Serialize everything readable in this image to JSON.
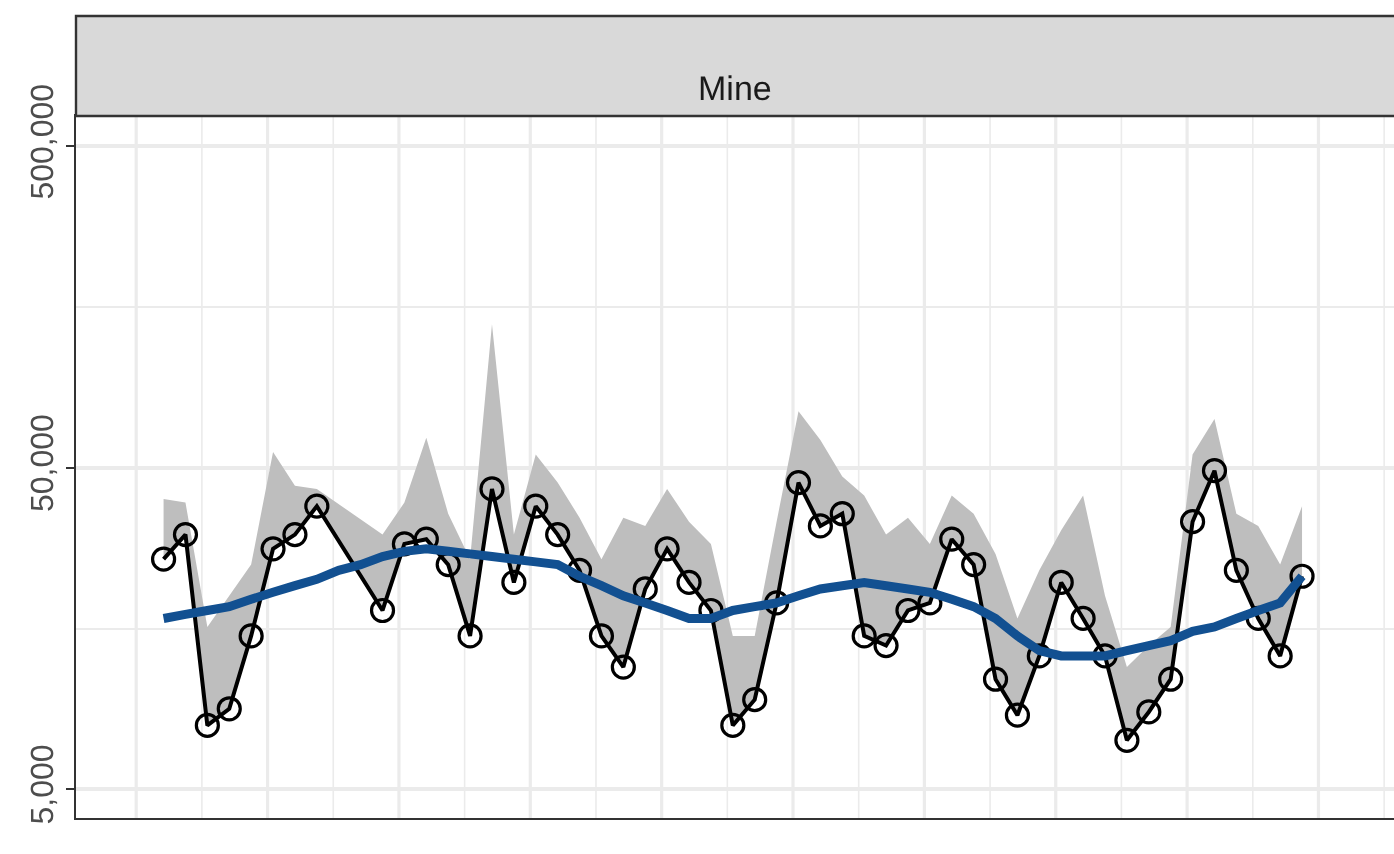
{
  "chart_data": {
    "type": "line",
    "title": "Mine",
    "log": "y",
    "grid": true,
    "categories": [
      null,
      null,
      null,
      null,
      null,
      null,
      null,
      null,
      null,
      null,
      null,
      null,
      null,
      null,
      null,
      null,
      null,
      null,
      null,
      null,
      null,
      null,
      null,
      null,
      null,
      null,
      null,
      null,
      null,
      null,
      null,
      null,
      null,
      null,
      null,
      null,
      null,
      null,
      null,
      null,
      null,
      null,
      null,
      null,
      null,
      null,
      null,
      null,
      null,
      null,
      null,
      null,
      null
    ],
    "ylim": [
      4070,
      622000
    ],
    "yticks": [
      {
        "value": 5000,
        "label": "5,000"
      },
      {
        "value": 15800,
        "label": null
      },
      {
        "value": 50000,
        "label": "50,000"
      },
      {
        "value": 158000,
        "label": null
      },
      {
        "value": 500000,
        "label": "500,000"
      }
    ],
    "series": [
      {
        "color": "#000000",
        "marker": "circle",
        "line_style": "solid",
        "values": [
          26000,
          31000,
          7900,
          8900,
          15000,
          28000,
          31000,
          38000,
          null,
          null,
          18000,
          29000,
          30000,
          25000,
          15000,
          43000,
          22000,
          38000,
          31000,
          24000,
          15000,
          12000,
          21000,
          28000,
          22000,
          18000,
          7900,
          9500,
          19000,
          45000,
          33000,
          36000,
          15000,
          14000,
          18000,
          19000,
          30000,
          25000,
          11000,
          8500,
          13000,
          22000,
          17000,
          13000,
          7100,
          8700,
          11000,
          34000,
          49000,
          24000,
          17000,
          13000,
          23000
        ],
        "lower": [
          26000,
          31000,
          7900,
          8900,
          15000,
          28000,
          31000,
          38000,
          null,
          null,
          18000,
          29000,
          30000,
          25000,
          15000,
          43000,
          22000,
          38000,
          31000,
          24000,
          15000,
          12000,
          21000,
          28000,
          22000,
          18000,
          7900,
          9500,
          19000,
          45000,
          33000,
          36000,
          15000,
          14000,
          18000,
          19000,
          30000,
          25000,
          11000,
          8500,
          13000,
          22000,
          17000,
          13000,
          7100,
          8700,
          11000,
          34000,
          49000,
          24000,
          17000,
          13000,
          23000
        ],
        "upper": [
          40000,
          39000,
          16000,
          20000,
          25000,
          56000,
          44000,
          43000,
          null,
          null,
          31000,
          39000,
          62000,
          36000,
          26000,
          140000,
          31000,
          55000,
          45000,
          35000,
          26000,
          35000,
          33000,
          43000,
          34000,
          29000,
          15000,
          15000,
          34000,
          75000,
          61000,
          47000,
          41000,
          31000,
          35000,
          29000,
          41000,
          36000,
          27000,
          17000,
          24000,
          32000,
          41000,
          20000,
          12000,
          14000,
          16000,
          55000,
          71000,
          36000,
          33000,
          25000,
          38000
        ]
      },
      {
        "color": "#125091",
        "marker": "none",
        "line_style": "solid",
        "values": [
          17000,
          17500,
          18000,
          18500,
          19500,
          20500,
          21500,
          22500,
          24000,
          25000,
          26500,
          27500,
          28000,
          27500,
          27000,
          26500,
          26000,
          25500,
          25000,
          23000,
          21500,
          20000,
          19000,
          18000,
          17000,
          17000,
          18000,
          18500,
          19000,
          20000,
          21000,
          21500,
          22000,
          21500,
          21000,
          20500,
          19500,
          18500,
          17000,
          15000,
          13500,
          13000,
          13000,
          13000,
          13500,
          14000,
          14500,
          15500,
          16000,
          17000,
          18000,
          19000,
          23000
        ]
      }
    ]
  }
}
